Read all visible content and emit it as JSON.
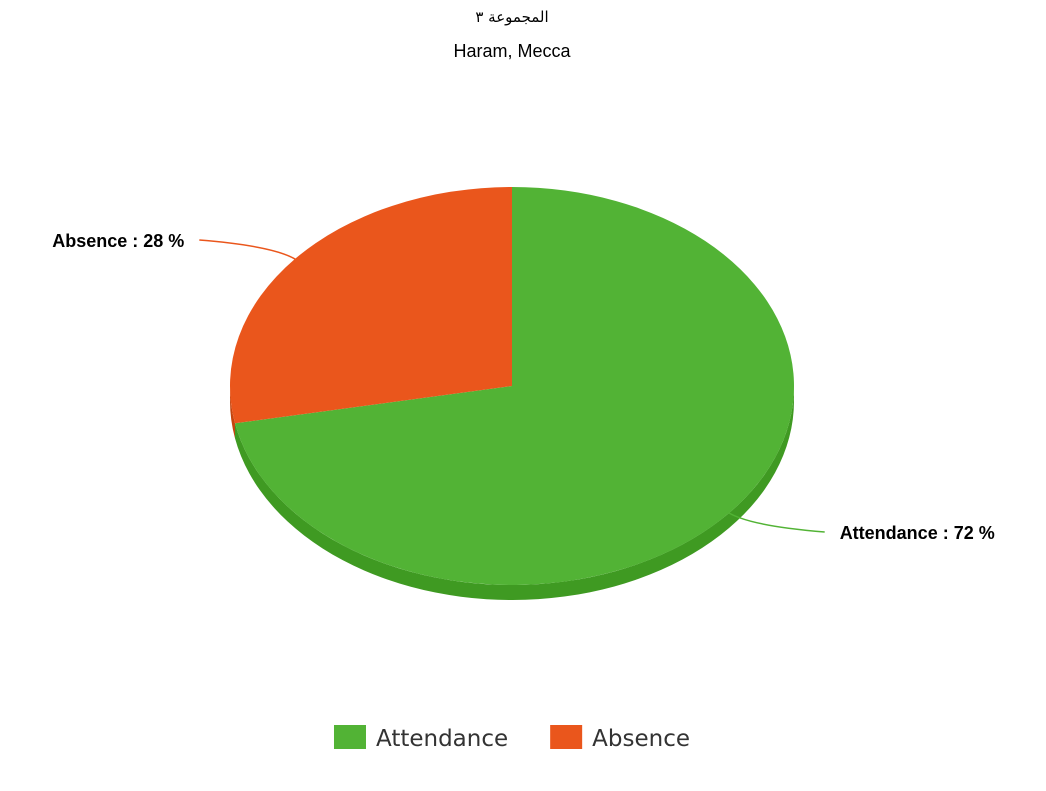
{
  "chart_data": {
    "type": "pie",
    "title": "المجموعة ٣",
    "subtitle": "Haram, Mecca",
    "slices": [
      {
        "name": "Attendance",
        "value": 72,
        "label": "Attendance : 72 %",
        "color": "#52b335",
        "shade": "#3f9a22"
      },
      {
        "name": "Absence",
        "value": 28,
        "label": "Absence : 28 %",
        "color": "#ea561c",
        "shade": "#c4450f"
      }
    ],
    "legend": {
      "position": "bottom",
      "entries": [
        "Attendance",
        "Absence"
      ]
    },
    "start_angle_deg": 0,
    "direction": "clockwise",
    "style": "3d"
  }
}
